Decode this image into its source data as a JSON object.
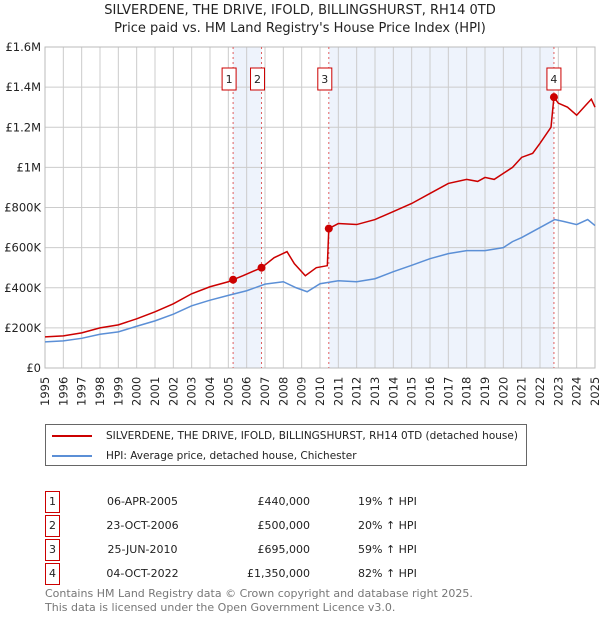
{
  "chart_data": {
    "type": "line",
    "title": "SILVERDENE, THE DRIVE, IFOLD, BILLINGSHURST, RH14 0TD",
    "subtitle": "Price paid vs. HM Land Registry's House Price Index (HPI)",
    "xlim": [
      1995,
      2025
    ],
    "ylim": [
      0,
      1600000
    ],
    "x_ticks": [
      "1995",
      "1996",
      "1997",
      "1998",
      "1999",
      "2000",
      "2001",
      "2002",
      "2003",
      "2004",
      "2005",
      "2006",
      "2007",
      "2008",
      "2009",
      "2010",
      "2011",
      "2012",
      "2013",
      "2014",
      "2015",
      "2016",
      "2017",
      "2018",
      "2019",
      "2020",
      "2021",
      "2022",
      "2023",
      "2024",
      "2025"
    ],
    "y_ticks": [
      {
        "v": 0,
        "label": "£0"
      },
      {
        "v": 200000,
        "label": "£200K"
      },
      {
        "v": 400000,
        "label": "£400K"
      },
      {
        "v": 600000,
        "label": "£600K"
      },
      {
        "v": 800000,
        "label": "£800K"
      },
      {
        "v": 1000000,
        "label": "£1M"
      },
      {
        "v": 1200000,
        "label": "£1.2M"
      },
      {
        "v": 1400000,
        "label": "£1.4M"
      },
      {
        "v": 1600000,
        "label": "£1.6M"
      }
    ],
    "grid": true,
    "series": [
      {
        "name": "SILVERDENE, THE DRIVE, IFOLD, BILLINGSHURST, RH14 0TD (detached house)",
        "color": "#cc0000",
        "points": [
          [
            1995,
            155000
          ],
          [
            1996,
            160000
          ],
          [
            1997,
            175000
          ],
          [
            1998,
            200000
          ],
          [
            1999,
            215000
          ],
          [
            2000,
            245000
          ],
          [
            2001,
            280000
          ],
          [
            2002,
            320000
          ],
          [
            2003,
            370000
          ],
          [
            2004,
            405000
          ],
          [
            2005,
            430000
          ],
          [
            2005.26,
            440000
          ],
          [
            2005.8,
            460000
          ],
          [
            2006.3,
            480000
          ],
          [
            2006.81,
            500000
          ],
          [
            2007.5,
            550000
          ],
          [
            2008.2,
            580000
          ],
          [
            2008.6,
            520000
          ],
          [
            2009.2,
            460000
          ],
          [
            2009.8,
            500000
          ],
          [
            2010.4,
            510000
          ],
          [
            2010.48,
            695000
          ],
          [
            2011,
            720000
          ],
          [
            2012,
            715000
          ],
          [
            2013,
            740000
          ],
          [
            2014,
            780000
          ],
          [
            2015,
            820000
          ],
          [
            2016,
            870000
          ],
          [
            2017,
            920000
          ],
          [
            2018,
            940000
          ],
          [
            2018.6,
            930000
          ],
          [
            2019,
            950000
          ],
          [
            2019.5,
            940000
          ],
          [
            2020,
            970000
          ],
          [
            2020.5,
            1000000
          ],
          [
            2021,
            1050000
          ],
          [
            2021.6,
            1070000
          ],
          [
            2022,
            1120000
          ],
          [
            2022.6,
            1200000
          ],
          [
            2022.76,
            1350000
          ],
          [
            2023,
            1320000
          ],
          [
            2023.5,
            1300000
          ],
          [
            2024,
            1260000
          ],
          [
            2024.5,
            1310000
          ],
          [
            2024.8,
            1340000
          ],
          [
            2025,
            1300000
          ]
        ]
      },
      {
        "name": "HPI: Average price, detached house, Chichester",
        "color": "#5b8fd6",
        "points": [
          [
            1995,
            130000
          ],
          [
            1996,
            135000
          ],
          [
            1997,
            148000
          ],
          [
            1998,
            168000
          ],
          [
            1999,
            180000
          ],
          [
            2000,
            208000
          ],
          [
            2001,
            235000
          ],
          [
            2002,
            268000
          ],
          [
            2003,
            310000
          ],
          [
            2004,
            338000
          ],
          [
            2005,
            362000
          ],
          [
            2006,
            385000
          ],
          [
            2007,
            418000
          ],
          [
            2008,
            430000
          ],
          [
            2008.7,
            400000
          ],
          [
            2009.3,
            380000
          ],
          [
            2010,
            420000
          ],
          [
            2011,
            435000
          ],
          [
            2012,
            430000
          ],
          [
            2013,
            445000
          ],
          [
            2014,
            480000
          ],
          [
            2015,
            512000
          ],
          [
            2016,
            545000
          ],
          [
            2017,
            570000
          ],
          [
            2018,
            585000
          ],
          [
            2019,
            585000
          ],
          [
            2020,
            600000
          ],
          [
            2020.5,
            630000
          ],
          [
            2021,
            650000
          ],
          [
            2022,
            700000
          ],
          [
            2022.8,
            740000
          ],
          [
            2023.3,
            730000
          ],
          [
            2024,
            715000
          ],
          [
            2024.6,
            740000
          ],
          [
            2025,
            710000
          ]
        ]
      }
    ],
    "sales": [
      {
        "n": "1",
        "x": 2005.26,
        "y": 440000,
        "date": "06-APR-2005",
        "price": "£440,000",
        "hpi": "19% ↑ HPI"
      },
      {
        "n": "2",
        "x": 2006.81,
        "y": 500000,
        "date": "23-OCT-2006",
        "price": "£500,000",
        "hpi": "20% ↑ HPI"
      },
      {
        "n": "3",
        "x": 2010.48,
        "y": 695000,
        "date": "25-JUN-2010",
        "price": "£695,000",
        "hpi": "59% ↑ HPI"
      },
      {
        "n": "4",
        "x": 2022.76,
        "y": 1350000,
        "date": "04-OCT-2022",
        "price": "£1,350,000",
        "hpi": "82% ↑ HPI"
      }
    ],
    "shaded_ranges": [
      [
        2005.26,
        2006.81
      ],
      [
        2010.48,
        2022.76
      ]
    ]
  },
  "footer": {
    "line1": "Contains HM Land Registry data © Crown copyright and database right 2025.",
    "line2": "This data is licensed under the Open Government Licence v3.0."
  }
}
